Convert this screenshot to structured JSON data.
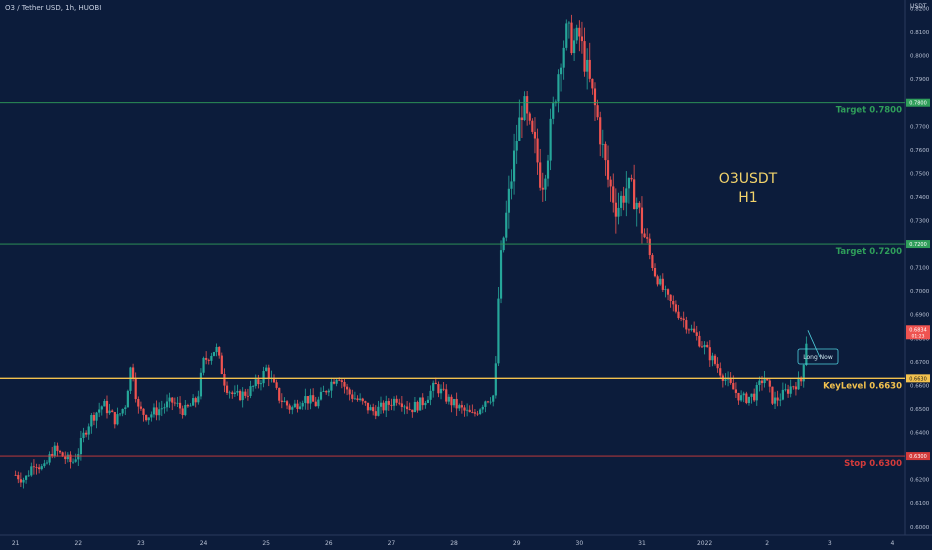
{
  "header": {
    "title": "O3 / Tether USD, 1h, HUOBI",
    "unit": "USDT"
  },
  "chart_data": {
    "type": "candlestick",
    "symbol_label_line1": "O3USDT",
    "symbol_label_line2": "H1",
    "ylim": [
      0.5965,
      0.8236
    ],
    "y_ticks": [
      "0.8200",
      "0.8100",
      "0.8000",
      "0.7900",
      "0.7800",
      "0.7700",
      "0.7600",
      "0.7500",
      "0.7400",
      "0.7300",
      "0.7200",
      "0.7100",
      "0.7000",
      "0.6900",
      "0.6800",
      "0.6700",
      "0.6600",
      "0.6500",
      "0.6400",
      "0.6300",
      "0.6200",
      "0.6100",
      "0.6000"
    ],
    "x_ticks": [
      "21",
      "22",
      "23",
      "24",
      "25",
      "26",
      "27",
      "28",
      "29",
      "30",
      "31",
      "2022",
      "2",
      "3",
      "4"
    ],
    "x_tick_positions": [
      0,
      1,
      2,
      3,
      4,
      5,
      6,
      7,
      8,
      9,
      10,
      11,
      12,
      13,
      14
    ],
    "xlim": [
      -0.25,
      14.2
    ],
    "levels": [
      {
        "name": "Target 0.7800",
        "value": 0.78,
        "price_tag": "0.7800",
        "color": "#2f9e5a"
      },
      {
        "name": "Target 0.7200",
        "value": 0.72,
        "price_tag": "0.7200",
        "color": "#2f9e5a"
      },
      {
        "name": "KeyLevel 0.6630",
        "value": 0.663,
        "price_tag": "0.6630",
        "color": "#f2c14e"
      },
      {
        "name": "Stop 0.6300",
        "value": 0.63,
        "price_tag": "0.6300",
        "color": "#d43b3b"
      }
    ],
    "current_price": {
      "value": "0.6834",
      "countdown": "01:23",
      "color": "#ef5350"
    },
    "annotation": {
      "text": "Long Now"
    },
    "up_color": "#26a69a",
    "down_color": "#ef5350",
    "background": "#0c1c3b",
    "path": [
      [
        0.0,
        0.622
      ],
      [
        0.15,
        0.62
      ],
      [
        0.3,
        0.628
      ],
      [
        0.45,
        0.624
      ],
      [
        0.6,
        0.633
      ],
      [
        0.75,
        0.63
      ],
      [
        0.9,
        0.627
      ],
      [
        1.0,
        0.632
      ],
      [
        1.1,
        0.64
      ],
      [
        1.2,
        0.646
      ],
      [
        1.4,
        0.652
      ],
      [
        1.6,
        0.645
      ],
      [
        1.75,
        0.652
      ],
      [
        1.85,
        0.67
      ],
      [
        1.95,
        0.65
      ],
      [
        2.1,
        0.647
      ],
      [
        2.3,
        0.65
      ],
      [
        2.5,
        0.653
      ],
      [
        2.7,
        0.649
      ],
      [
        2.9,
        0.654
      ],
      [
        3.0,
        0.67
      ],
      [
        3.2,
        0.676
      ],
      [
        3.35,
        0.66
      ],
      [
        3.5,
        0.655
      ],
      [
        3.7,
        0.657
      ],
      [
        3.9,
        0.662
      ],
      [
        4.0,
        0.667
      ],
      [
        4.2,
        0.655
      ],
      [
        4.4,
        0.65
      ],
      [
        4.6,
        0.655
      ],
      [
        4.8,
        0.652
      ],
      [
        5.0,
        0.66
      ],
      [
        5.15,
        0.665
      ],
      [
        5.3,
        0.657
      ],
      [
        5.5,
        0.653
      ],
      [
        5.7,
        0.649
      ],
      [
        5.9,
        0.651
      ],
      [
        6.1,
        0.655
      ],
      [
        6.3,
        0.65
      ],
      [
        6.5,
        0.653
      ],
      [
        6.7,
        0.66
      ],
      [
        6.9,
        0.654
      ],
      [
        7.1,
        0.65
      ],
      [
        7.3,
        0.647
      ],
      [
        7.5,
        0.654
      ],
      [
        7.65,
        0.656
      ],
      [
        7.72,
        0.705
      ],
      [
        7.8,
        0.725
      ],
      [
        7.9,
        0.745
      ],
      [
        8.0,
        0.765
      ],
      [
        8.1,
        0.78
      ],
      [
        8.2,
        0.768
      ],
      [
        8.3,
        0.76
      ],
      [
        8.4,
        0.745
      ],
      [
        8.5,
        0.76
      ],
      [
        8.6,
        0.78
      ],
      [
        8.7,
        0.8
      ],
      [
        8.8,
        0.81
      ],
      [
        8.9,
        0.805
      ],
      [
        9.0,
        0.808
      ],
      [
        9.15,
        0.79
      ],
      [
        9.3,
        0.772
      ],
      [
        9.45,
        0.748
      ],
      [
        9.6,
        0.735
      ],
      [
        9.75,
        0.744
      ],
      [
        9.9,
        0.74
      ],
      [
        10.0,
        0.727
      ],
      [
        10.2,
        0.708
      ],
      [
        10.4,
        0.697
      ],
      [
        10.6,
        0.69
      ],
      [
        10.8,
        0.683
      ],
      [
        11.0,
        0.676
      ],
      [
        11.2,
        0.668
      ],
      [
        11.4,
        0.66
      ],
      [
        11.6,
        0.654
      ],
      [
        11.8,
        0.656
      ],
      [
        11.95,
        0.664
      ],
      [
        12.1,
        0.653
      ],
      [
        12.25,
        0.656
      ],
      [
        12.4,
        0.66
      ],
      [
        12.55,
        0.662
      ],
      [
        12.6,
        0.675
      ],
      [
        12.65,
        0.683
      ]
    ]
  }
}
